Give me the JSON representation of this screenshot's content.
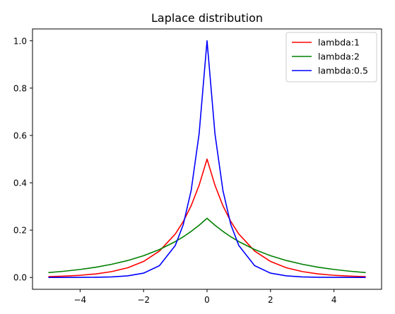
{
  "chart_data": {
    "type": "line",
    "title": "Laplace distribution",
    "xlabel": "",
    "ylabel": "",
    "xlim": [
      -5.5,
      5.5
    ],
    "ylim": [
      -0.05,
      1.05
    ],
    "xticks": [
      -4,
      -2,
      0,
      2,
      4
    ],
    "xtick_labels": [
      "−4",
      "−2",
      "0",
      "2",
      "4"
    ],
    "yticks": [
      0.0,
      0.2,
      0.4,
      0.6,
      0.8,
      1.0
    ],
    "ytick_labels": [
      "0.0",
      "0.2",
      "0.4",
      "0.6",
      "0.8",
      "1.0"
    ],
    "grid": false,
    "legend_position": "top-right",
    "x": [
      -5,
      -4.5,
      -4,
      -3.5,
      -3,
      -2.5,
      -2,
      -1.5,
      -1,
      -0.75,
      -0.5,
      -0.25,
      0,
      0.25,
      0.5,
      0.75,
      1,
      1.5,
      2,
      2.5,
      3,
      3.5,
      4,
      4.5,
      5
    ],
    "series": [
      {
        "name": "lambda:1",
        "color": "#ff0000",
        "values": [
          0.0034,
          0.0056,
          0.0092,
          0.0151,
          0.0249,
          0.041,
          0.0677,
          0.1116,
          0.1839,
          0.2362,
          0.3033,
          0.3894,
          0.5,
          0.3894,
          0.3033,
          0.2362,
          0.1839,
          0.1116,
          0.0677,
          0.041,
          0.0249,
          0.0151,
          0.0092,
          0.0056,
          0.0034
        ]
      },
      {
        "name": "lambda:2",
        "color": "#008000",
        "values": [
          0.0205,
          0.0264,
          0.0338,
          0.0434,
          0.0558,
          0.0716,
          0.092,
          0.1181,
          0.1516,
          0.1718,
          0.1947,
          0.2206,
          0.25,
          0.2206,
          0.1947,
          0.1718,
          0.1516,
          0.1181,
          0.092,
          0.0716,
          0.0558,
          0.0434,
          0.0338,
          0.0264,
          0.0205
        ]
      },
      {
        "name": "lambda:0.5",
        "color": "#0000ff",
        "values": [
          4.54e-05,
          0.0001234,
          0.0003355,
          0.000912,
          0.00248,
          0.00674,
          0.0183,
          0.0498,
          0.1353,
          0.2231,
          0.3679,
          0.6065,
          1.0,
          0.6065,
          0.3679,
          0.2231,
          0.1353,
          0.0498,
          0.0183,
          0.00674,
          0.00248,
          0.000912,
          0.0003355,
          0.0001234,
          4.54e-05
        ]
      }
    ]
  }
}
